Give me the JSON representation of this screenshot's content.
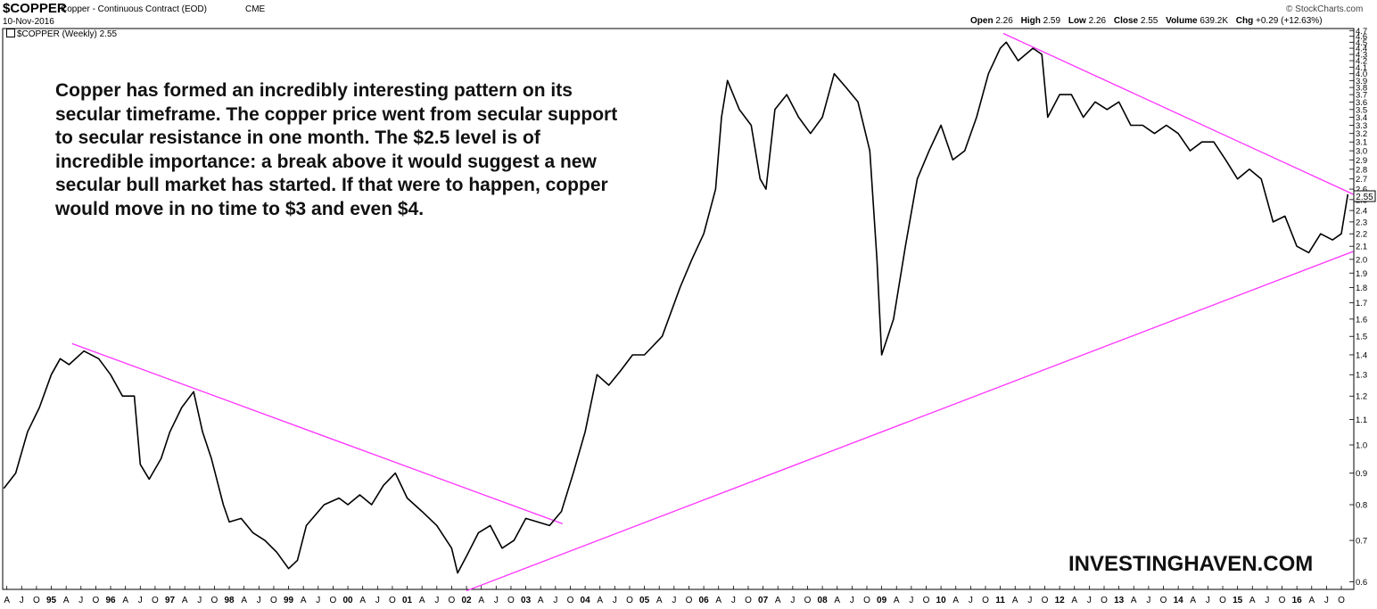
{
  "header": {
    "symbol": "$COPPER",
    "description": "Copper - Continuous Contract (EOD)",
    "exchange": "CME",
    "date": "10-Nov-2016",
    "brand": "© StockCharts.com",
    "ohlc": {
      "open_label": "Open",
      "open": "2.26",
      "high_label": "High",
      "high": "2.59",
      "low_label": "Low",
      "low": "2.26",
      "close_label": "Close",
      "close": "2.55",
      "volume_label": "Volume",
      "volume": "639.2K",
      "chg_label": "Chg",
      "chg": "+0.29 (+12.63%)"
    },
    "legend": "$COPPER (Weekly) 2.55"
  },
  "annotation": "Copper has formed an incredibly interesting pattern on its secular timeframe. The copper price went from secular support to secular resistance in one month. The $2.5 level is of incredible importance: a break above it would suggest a new secular bull market has started. If that were to happen, copper would move in no time to $3 and even $4.",
  "watermark": "INVESTINGHAVEN.COM",
  "chart_data": {
    "type": "line",
    "title": "$COPPER (Weekly)",
    "yscale": "log",
    "ylim": [
      0.585,
      4.72
    ],
    "xlim": [
      1994.18,
      2016.93
    ],
    "grid": false,
    "last_value": "2.55",
    "y_ticks": [
      "0.6",
      "0.7",
      "0.8",
      "0.9",
      "1.0",
      "1.1",
      "1.2",
      "1.3",
      "1.4",
      "1.5",
      "1.6",
      "1.7",
      "1.8",
      "1.9",
      "2.0",
      "2.1",
      "2.2",
      "2.3",
      "2.4",
      "2.5",
      "2.6",
      "2.7",
      "2.8",
      "2.9",
      "3.0",
      "3.1",
      "3.2",
      "3.3",
      "3.4",
      "3.5",
      "3.6",
      "3.7",
      "3.8",
      "3.9",
      "4.0",
      "4.1",
      "4.2",
      "4.3",
      "4.4",
      "4.5",
      "4.6",
      "4.7"
    ],
    "x_tick_labels": [
      "A",
      "J",
      "O",
      "95",
      "A",
      "J",
      "O",
      "96",
      "A",
      "J",
      "O",
      "97",
      "A",
      "J",
      "O",
      "98",
      "A",
      "J",
      "O",
      "99",
      "A",
      "J",
      "O",
      "00",
      "A",
      "J",
      "O",
      "01",
      "A",
      "J",
      "O",
      "02",
      "A",
      "J",
      "O",
      "03",
      "A",
      "J",
      "O",
      "04",
      "A",
      "J",
      "O",
      "05",
      "A",
      "J",
      "O",
      "06",
      "A",
      "J",
      "O",
      "07",
      "A",
      "J",
      "O",
      "08",
      "A",
      "J",
      "O",
      "09",
      "A",
      "J",
      "O",
      "10",
      "A",
      "J",
      "O",
      "11",
      "A",
      "J",
      "O",
      "12",
      "A",
      "J",
      "O",
      "13",
      "A",
      "J",
      "O",
      "14",
      "A",
      "J",
      "O",
      "15",
      "A",
      "J",
      "O",
      "16",
      "A",
      "J",
      "O"
    ],
    "series": [
      {
        "x": [
          1994.2,
          1994.4,
          1994.6,
          1994.8,
          1995.0,
          1995.15,
          1995.3,
          1995.55,
          1995.8,
          1996.0,
          1996.2,
          1996.4,
          1996.5,
          1996.65,
          1996.85,
          1997.0,
          1997.2,
          1997.4,
          1997.55,
          1997.7,
          1997.9,
          1998.0,
          1998.2,
          1998.4,
          1998.6,
          1998.8,
          1999.0,
          1999.15,
          1999.3,
          1999.6,
          1999.85,
          2000.0,
          2000.2,
          2000.4,
          2000.6,
          2000.8,
          2001.0,
          2001.25,
          2001.5,
          2001.75,
          2001.85,
          2002.0,
          2002.2,
          2002.4,
          2002.6,
          2002.8,
          2003.0,
          2003.2,
          2003.4,
          2003.6,
          2003.8,
          2004.0,
          2004.2,
          2004.4,
          2004.6,
          2004.8,
          2005.0,
          2005.3,
          2005.6,
          2005.8,
          2006.0,
          2006.2,
          2006.3,
          2006.4,
          2006.6,
          2006.8,
          2006.95,
          2007.05,
          2007.2,
          2007.4,
          2007.6,
          2007.8,
          2008.0,
          2008.2,
          2008.4,
          2008.6,
          2008.8,
          2008.92,
          2009.0,
          2009.2,
          2009.4,
          2009.6,
          2009.8,
          2010.0,
          2010.2,
          2010.4,
          2010.6,
          2010.8,
          2011.0,
          2011.1,
          2011.3,
          2011.55,
          2011.7,
          2011.8,
          2012.0,
          2012.2,
          2012.4,
          2012.6,
          2012.8,
          2013.0,
          2013.2,
          2013.4,
          2013.6,
          2013.8,
          2014.0,
          2014.2,
          2014.4,
          2014.6,
          2014.8,
          2015.0,
          2015.2,
          2015.4,
          2015.6,
          2015.8,
          2016.0,
          2016.2,
          2016.4,
          2016.6,
          2016.75,
          2016.86
        ],
        "y": [
          0.85,
          0.9,
          1.05,
          1.15,
          1.3,
          1.38,
          1.35,
          1.42,
          1.38,
          1.3,
          1.2,
          1.2,
          0.93,
          0.88,
          0.95,
          1.05,
          1.15,
          1.22,
          1.05,
          0.95,
          0.8,
          0.75,
          0.76,
          0.72,
          0.7,
          0.67,
          0.63,
          0.65,
          0.74,
          0.8,
          0.82,
          0.8,
          0.83,
          0.8,
          0.86,
          0.9,
          0.82,
          0.78,
          0.74,
          0.68,
          0.62,
          0.66,
          0.72,
          0.74,
          0.68,
          0.7,
          0.76,
          0.75,
          0.74,
          0.78,
          0.9,
          1.05,
          1.3,
          1.25,
          1.32,
          1.4,
          1.4,
          1.5,
          1.8,
          2.0,
          2.2,
          2.6,
          3.4,
          3.9,
          3.5,
          3.3,
          2.7,
          2.6,
          3.5,
          3.7,
          3.4,
          3.2,
          3.4,
          4.0,
          3.8,
          3.6,
          3.0,
          2.0,
          1.4,
          1.6,
          2.1,
          2.7,
          3.0,
          3.3,
          2.9,
          3.0,
          3.4,
          4.0,
          4.4,
          4.5,
          4.2,
          4.4,
          4.3,
          3.4,
          3.7,
          3.7,
          3.4,
          3.6,
          3.5,
          3.6,
          3.3,
          3.3,
          3.2,
          3.3,
          3.2,
          3.0,
          3.1,
          3.1,
          2.9,
          2.7,
          2.8,
          2.7,
          2.3,
          2.35,
          2.1,
          2.05,
          2.2,
          2.15,
          2.2,
          2.55
        ]
      }
    ],
    "trendlines": [
      {
        "x": [
          1995.35,
          2003.62
        ],
        "y": [
          1.46,
          0.745
        ]
      },
      {
        "x": [
          2011.05,
          2016.95
        ],
        "y": [
          4.65,
          2.55
        ]
      },
      {
        "x": [
          2002.0,
          2016.95
        ],
        "y": [
          0.58,
          2.06
        ]
      }
    ]
  }
}
